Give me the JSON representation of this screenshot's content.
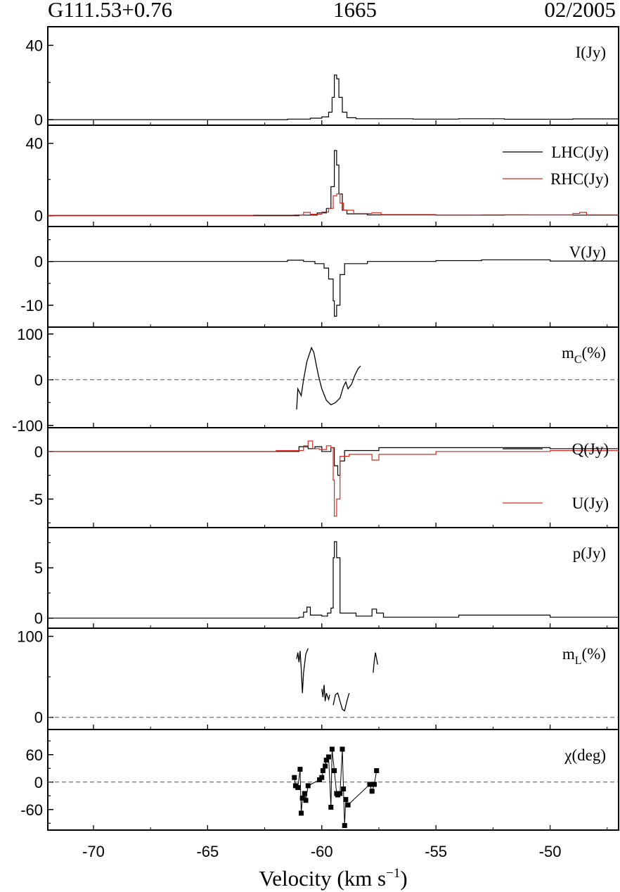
{
  "header": {
    "source": "G111.53+0.76",
    "frequency": "1665",
    "date": "02/2005"
  },
  "chart_data": {
    "type": "line",
    "xlabel": "Velocity (km s",
    "xlabel_superscript": "−1",
    "xlabel_close": ")",
    "xlim": [
      -72,
      -47
    ],
    "xticks": [
      -70,
      -65,
      -60,
      -55,
      -50
    ],
    "panels": [
      {
        "id": "I",
        "label": "I(Jy)",
        "ylim": [
          -3,
          50
        ],
        "yticks": [
          0,
          40
        ],
        "style": "step",
        "series": [
          {
            "color": "#000000",
            "points": [
              [
                -72,
                0
              ],
              [
                -63,
                0
              ],
              [
                -61.5,
                0.3
              ],
              [
                -60.5,
                0.8
              ],
              [
                -60,
                1.5
              ],
              [
                -59.7,
                4
              ],
              [
                -59.55,
                12
              ],
              [
                -59.45,
                24
              ],
              [
                -59.35,
                22
              ],
              [
                -59.25,
                12
              ],
              [
                -59.1,
                4
              ],
              [
                -58.9,
                1
              ],
              [
                -58.5,
                0.5
              ],
              [
                -56,
                0.3
              ],
              [
                -54,
                0.5
              ],
              [
                -52,
                0.2
              ],
              [
                -49,
                0.4
              ],
              [
                -47,
                0.1
              ]
            ]
          }
        ]
      },
      {
        "id": "LHC-RHC",
        "label": "",
        "ylim": [
          -6,
          50
        ],
        "yticks": [
          0,
          40
        ],
        "style": "step",
        "legend": [
          {
            "text": "LHC(Jy)",
            "color": "#000000"
          },
          {
            "text": "RHC(Jy)",
            "color": "#d42a20"
          }
        ],
        "series": [
          {
            "name": "LHC(Jy)",
            "color": "#000000",
            "points": [
              [
                -72,
                0
              ],
              [
                -63,
                0
              ],
              [
                -61,
                0.3
              ],
              [
                -60.2,
                1.5
              ],
              [
                -59.8,
                4
              ],
              [
                -59.6,
                16
              ],
              [
                -59.45,
                36
              ],
              [
                -59.35,
                28
              ],
              [
                -59.25,
                12
              ],
              [
                -59.1,
                3
              ],
              [
                -58.9,
                1
              ],
              [
                -58,
                0.4
              ],
              [
                -55,
                0.3
              ],
              [
                -52,
                0.4
              ],
              [
                -49,
                0.3
              ],
              [
                -47,
                0.1
              ]
            ]
          },
          {
            "name": "RHC(Jy)",
            "color": "#d42a20",
            "points": [
              [
                -72,
                0.2
              ],
              [
                -63,
                0.3
              ],
              [
                -61.2,
                0.4
              ],
              [
                -60.8,
                1.8
              ],
              [
                -60.5,
                0.8
              ],
              [
                -60,
                2
              ],
              [
                -59.7,
                4
              ],
              [
                -59.5,
                11
              ],
              [
                -59.35,
                12
              ],
              [
                -59.2,
                7
              ],
              [
                -59.05,
                3
              ],
              [
                -58.6,
                1.2
              ],
              [
                -57.8,
                1.6
              ],
              [
                -57.4,
                0.6
              ],
              [
                -55,
                0.4
              ],
              [
                -53,
                0.5
              ],
              [
                -51,
                0.4
              ],
              [
                -49,
                1.2
              ],
              [
                -48.7,
                1.8
              ],
              [
                -48.4,
                0.5
              ],
              [
                -47,
                0.2
              ]
            ]
          }
        ]
      },
      {
        "id": "V",
        "label": "V(Jy)",
        "ylim": [
          -15,
          8
        ],
        "yticks": [
          0,
          -10
        ],
        "style": "step",
        "series": [
          {
            "color": "#000000",
            "points": [
              [
                -72,
                0
              ],
              [
                -63,
                0
              ],
              [
                -61.5,
                0.3
              ],
              [
                -60.8,
                0
              ],
              [
                -60.3,
                -0.5
              ],
              [
                -59.9,
                -1.5
              ],
              [
                -59.7,
                -4
              ],
              [
                -59.5,
                -9
              ],
              [
                -59.45,
                -12.5
              ],
              [
                -59.35,
                -10
              ],
              [
                -59.2,
                -3
              ],
              [
                -59,
                -0.5
              ],
              [
                -58,
                0
              ],
              [
                -55,
                0.2
              ],
              [
                -53,
                0.4
              ],
              [
                -50,
                0.1
              ],
              [
                -47,
                0
              ]
            ]
          }
        ]
      },
      {
        "id": "mC",
        "label": "m",
        "label_sub": "C",
        "label_end": "(%)",
        "ylim": [
          -105,
          115
        ],
        "yticks": [
          100,
          0,
          -100
        ],
        "style": "line",
        "zero_line": true,
        "series": [
          {
            "color": "#000000",
            "points": [
              [
                -61.1,
                -65
              ],
              [
                -61.05,
                -20
              ],
              [
                -60.9,
                -35
              ],
              [
                -60.8,
                0
              ],
              [
                -60.65,
                40
              ],
              [
                -60.55,
                55
              ],
              [
                -60.45,
                70
              ],
              [
                -60.35,
                60
              ],
              [
                -60.25,
                35
              ],
              [
                -60.15,
                10
              ],
              [
                -60,
                -20
              ],
              [
                -59.8,
                -45
              ],
              [
                -59.6,
                -55
              ],
              [
                -59.4,
                -50
              ],
              [
                -59.2,
                -40
              ],
              [
                -59.05,
                -15
              ],
              [
                -58.95,
                -5
              ],
              [
                -58.85,
                -20
              ],
              [
                -58.7,
                -10
              ],
              [
                -58.55,
                10
              ],
              [
                -58.4,
                25
              ],
              [
                -58.3,
                30
              ]
            ]
          }
        ]
      },
      {
        "id": "Q-U",
        "label": "",
        "ylim": [
          -8,
          2.5
        ],
        "yticks": [
          0,
          -5
        ],
        "style": "step",
        "legend": [
          {
            "text": "Q(Jy)",
            "color": "#000000"
          },
          {
            "text": "U(Jy)",
            "color": "#d42a20"
          }
        ],
        "series": [
          {
            "name": "Q(Jy)",
            "color": "#000000",
            "points": [
              [
                -72,
                0
              ],
              [
                -62,
                0
              ],
              [
                -61,
                0.5
              ],
              [
                -60.6,
                0.3
              ],
              [
                -60.3,
                0.5
              ],
              [
                -60,
                0
              ],
              [
                -59.6,
                0.4
              ],
              [
                -59.45,
                -1.5
              ],
              [
                -59.3,
                -2.5
              ],
              [
                -59.2,
                -1
              ],
              [
                -59,
                0.1
              ],
              [
                -57.5,
                0.4
              ],
              [
                -54,
                0.4
              ],
              [
                -50,
                0.3
              ],
              [
                -47,
                0.1
              ]
            ]
          },
          {
            "name": "U(Jy)",
            "color": "#d42a20",
            "points": [
              [
                -72,
                0
              ],
              [
                -62,
                0.1
              ],
              [
                -60.8,
                0.6
              ],
              [
                -60.6,
                1.1
              ],
              [
                -60.4,
                0.3
              ],
              [
                -60.1,
                0.2
              ],
              [
                -59.8,
                0.6
              ],
              [
                -59.6,
                0.4
              ],
              [
                -59.5,
                -3
              ],
              [
                -59.45,
                -6.8
              ],
              [
                -59.35,
                -5
              ],
              [
                -59.2,
                -0.5
              ],
              [
                -58.8,
                -0.3
              ],
              [
                -57.8,
                -0.9
              ],
              [
                -57.5,
                -0.3
              ],
              [
                -55,
                0
              ],
              [
                -50,
                0.1
              ],
              [
                -47,
                0
              ]
            ]
          }
        ]
      },
      {
        "id": "p",
        "label": "p(Jy)",
        "ylim": [
          -1,
          9
        ],
        "yticks": [
          0,
          5
        ],
        "style": "step",
        "series": [
          {
            "color": "#000000",
            "points": [
              [
                -72,
                0
              ],
              [
                -61,
                0.1
              ],
              [
                -60.8,
                0.6
              ],
              [
                -60.65,
                1.1
              ],
              [
                -60.5,
                0.3
              ],
              [
                -60,
                0.2
              ],
              [
                -59.75,
                0.5
              ],
              [
                -59.6,
                1
              ],
              [
                -59.5,
                6
              ],
              [
                -59.45,
                7.6
              ],
              [
                -59.35,
                6
              ],
              [
                -59.2,
                0.5
              ],
              [
                -58.5,
                0.2
              ],
              [
                -57.8,
                0.9
              ],
              [
                -57.6,
                0.5
              ],
              [
                -57.3,
                0.1
              ],
              [
                -54,
                0.3
              ],
              [
                -50,
                0.1
              ],
              [
                -47,
                0
              ]
            ]
          }
        ]
      },
      {
        "id": "mL",
        "label": "m",
        "label_sub": "L",
        "label_end": "(%)",
        "ylim": [
          -15,
          110
        ],
        "yticks": [
          100,
          0
        ],
        "style": "line",
        "zero_line": true,
        "series": [
          {
            "color": "#000000",
            "points": [
              [
                -61.1,
                72
              ],
              [
                -61.05,
                80
              ],
              [
                -61,
                68
              ],
              [
                -60.95,
                82
              ],
              [
                -60.9,
                60
              ],
              [
                -60.85,
                30
              ],
              [
                -60.8,
                55
              ],
              [
                -60.7,
                78
              ],
              [
                -60.6,
                85
              ]
            ]
          },
          {
            "color": "#000000",
            "points": [
              [
                -60,
                35
              ],
              [
                -59.95,
                25
              ],
              [
                -59.9,
                40
              ],
              [
                -59.85,
                20
              ],
              [
                -59.8,
                30
              ],
              [
                -59.7,
                22
              ],
              [
                -59.65,
                28
              ]
            ]
          },
          {
            "color": "#000000",
            "points": [
              [
                -59.5,
                15
              ],
              [
                -59.4,
                28
              ],
              [
                -59.3,
                30
              ],
              [
                -59.2,
                20
              ],
              [
                -59.1,
                10
              ],
              [
                -59,
                8
              ],
              [
                -58.9,
                20
              ],
              [
                -58.8,
                30
              ]
            ]
          },
          {
            "color": "#000000",
            "points": [
              [
                -57.75,
                55
              ],
              [
                -57.7,
                70
              ],
              [
                -57.65,
                80
              ],
              [
                -57.55,
                65
              ]
            ]
          }
        ]
      },
      {
        "id": "chi",
        "label": "χ(deg)",
        "ylim": [
          -105,
          115
        ],
        "yticks": [
          60,
          0,
          -60
        ],
        "style": "markers",
        "zero_line": true,
        "series": [
          {
            "color": "#000000",
            "points": [
              [
                -61.2,
                10
              ],
              [
                -61.15,
                -8
              ],
              [
                -61.05,
                -12
              ],
              [
                -60.95,
                28
              ],
              [
                -60.9,
                -68
              ],
              [
                -60.85,
                -35
              ],
              [
                -60.75,
                -25
              ],
              [
                -60.7,
                -40
              ],
              [
                -60.6,
                -8
              ],
              [
                -60.1,
                5
              ],
              [
                -60.0,
                10
              ],
              [
                -59.95,
                25
              ],
              [
                -59.85,
                35
              ],
              [
                -59.8,
                48
              ],
              [
                -59.7,
                55
              ],
              [
                -59.6,
                -55
              ],
              [
                -59.55,
                72
              ],
              [
                -59.45,
                25
              ],
              [
                -59.35,
                -25
              ],
              [
                -59.3,
                -28
              ],
              [
                -59.2,
                -25
              ],
              [
                -59.1,
                72
              ],
              [
                -59.05,
                -15
              ],
              [
                -59.0,
                -95
              ],
              [
                -58.95,
                -38
              ],
              [
                -58.85,
                -50
              ],
              [
                -57.9,
                -5
              ],
              [
                -57.8,
                -20
              ],
              [
                -57.7,
                -5
              ],
              [
                -57.6,
                25
              ]
            ]
          }
        ]
      }
    ]
  }
}
